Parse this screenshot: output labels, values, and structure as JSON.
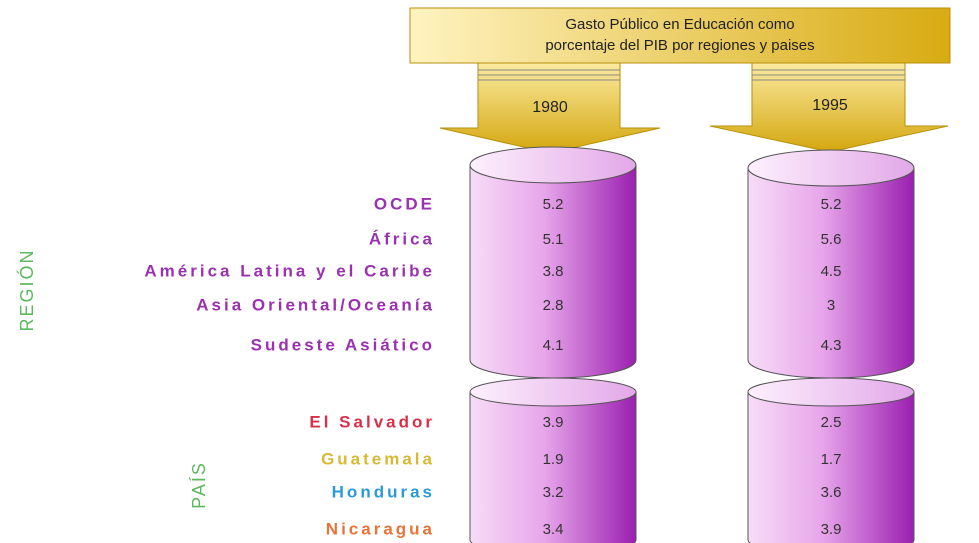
{
  "title_lines": [
    "Gasto Público en Educación como",
    "porcentaje del PIB por regiones y paises"
  ],
  "columns": [
    "1980",
    "1995"
  ],
  "groups": [
    {
      "label": "REGIÓN",
      "rows": [
        {
          "name": "OCDE",
          "color": "#9b30b0",
          "values": [
            5.2,
            5.2
          ]
        },
        {
          "name": "África",
          "color": "#9b30b0",
          "values": [
            5.1,
            5.6
          ]
        },
        {
          "name": "América Latina y el Caribe",
          "color": "#9b30b0",
          "values": [
            3.8,
            4.5
          ]
        },
        {
          "name": "Asia Oriental/Oceanía",
          "color": "#9b30b0",
          "values": [
            2.8,
            3
          ]
        },
        {
          "name": "Sudeste Asiático",
          "color": "#9b30b0",
          "values": [
            4.1,
            4.3
          ]
        }
      ]
    },
    {
      "label": "PAÍS",
      "rows": [
        {
          "name": "El Salvador",
          "color": "#d9304a",
          "values": [
            3.9,
            2.5
          ]
        },
        {
          "name": "Guatemala",
          "color": "#d9b832",
          "values": [
            1.9,
            1.7
          ]
        },
        {
          "name": "Honduras",
          "color": "#2a9ad8",
          "values": [
            3.2,
            3.6
          ]
        },
        {
          "name": "Nicaragua",
          "color": "#e8743a",
          "values": [
            3.4,
            3.9
          ]
        }
      ]
    }
  ]
}
